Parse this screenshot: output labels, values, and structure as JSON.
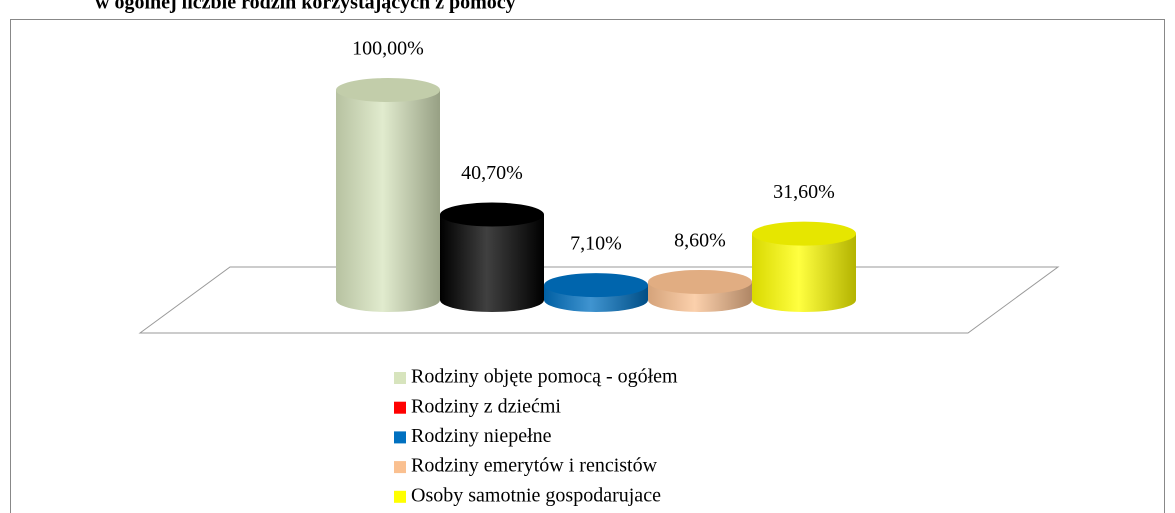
{
  "chart_data": {
    "type": "bar3d",
    "title": "w ogólnej liczbie rodzin korzystających z pomocy",
    "categories": [
      "Rodziny objęte pomocą - ogółem",
      "Rodziny z dziećmi",
      "Rodziny niepełne",
      "Rodziny emerytów i rencistów",
      "Osoby samotnie gospodarujace"
    ],
    "values": [
      100,
      40.7,
      7.1,
      8.6,
      31.6
    ],
    "value_labels": [
      "100,00%",
      "40,70%",
      "7,10%",
      "8,60%",
      "31,60%"
    ],
    "colors": [
      "#d7e4bd",
      "#ff0000",
      "#0070c0",
      "#fac090",
      "#ffff00"
    ],
    "legend": "bottom"
  }
}
